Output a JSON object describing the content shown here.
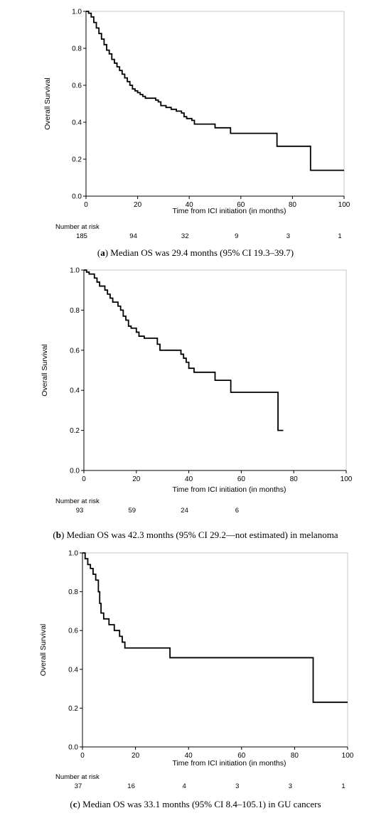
{
  "chart_data": [
    {
      "type": "line",
      "panel": "a",
      "xlabel": "Time from ICI initiation (in months)",
      "ylabel": "Overall Survival",
      "xlim": [
        0,
        100
      ],
      "ylim": [
        0,
        1
      ],
      "x_ticks": [
        "0",
        "20",
        "40",
        "60",
        "80",
        "100"
      ],
      "y_ticks": [
        "0.0",
        "0.2",
        "0.4",
        "0.6",
        "0.8",
        "1.0"
      ],
      "risk_title": "Number at risk",
      "risk_times": [
        0,
        20,
        40,
        60,
        80,
        100
      ],
      "risk_counts": [
        "185",
        "94",
        "32",
        "9",
        "3",
        "1"
      ],
      "caption_letter": "a",
      "caption_text": "Median OS was 29.4 months (95% CI 19.3–39.7)",
      "steps": [
        [
          0,
          1.0
        ],
        [
          1,
          0.99
        ],
        [
          2,
          0.97
        ],
        [
          3,
          0.94
        ],
        [
          4,
          0.91
        ],
        [
          5,
          0.88
        ],
        [
          6,
          0.85
        ],
        [
          7,
          0.82
        ],
        [
          8,
          0.79
        ],
        [
          9,
          0.77
        ],
        [
          10,
          0.74
        ],
        [
          11,
          0.72
        ],
        [
          12,
          0.7
        ],
        [
          13,
          0.68
        ],
        [
          14,
          0.66
        ],
        [
          15,
          0.64
        ],
        [
          16,
          0.62
        ],
        [
          17,
          0.6
        ],
        [
          18,
          0.58
        ],
        [
          19,
          0.57
        ],
        [
          20,
          0.56
        ],
        [
          21,
          0.55
        ],
        [
          22,
          0.54
        ],
        [
          23,
          0.53
        ],
        [
          27,
          0.52
        ],
        [
          28,
          0.51
        ],
        [
          29,
          0.49
        ],
        [
          31,
          0.48
        ],
        [
          33,
          0.47
        ],
        [
          35,
          0.46
        ],
        [
          37,
          0.45
        ],
        [
          38,
          0.43
        ],
        [
          39,
          0.42
        ],
        [
          41,
          0.41
        ],
        [
          42,
          0.39
        ],
        [
          50,
          0.37
        ],
        [
          56,
          0.34
        ],
        [
          74,
          0.27
        ],
        [
          87,
          0.14
        ],
        [
          100,
          0.14
        ]
      ]
    },
    {
      "type": "line",
      "panel": "b",
      "xlabel": "Time from ICI initiation (in months)",
      "ylabel": "Overall Survival",
      "xlim": [
        0,
        100
      ],
      "ylim": [
        0,
        1
      ],
      "x_ticks": [
        "0",
        "20",
        "40",
        "60",
        "80",
        "100"
      ],
      "y_ticks": [
        "0.0",
        "0.2",
        "0.4",
        "0.6",
        "0.8",
        "1.0"
      ],
      "risk_title": "Number at risk",
      "risk_times": [
        0,
        20,
        40,
        60
      ],
      "risk_counts": [
        "93",
        "59",
        "24",
        "6"
      ],
      "caption_letter": "b",
      "caption_text": "Median OS was 42.3 months (95% CI 29.2—not estimated) in melanoma",
      "steps": [
        [
          0,
          1.0
        ],
        [
          1,
          0.99
        ],
        [
          2,
          0.98
        ],
        [
          4,
          0.96
        ],
        [
          5,
          0.94
        ],
        [
          6,
          0.92
        ],
        [
          8,
          0.9
        ],
        [
          9,
          0.88
        ],
        [
          10,
          0.86
        ],
        [
          11,
          0.84
        ],
        [
          13,
          0.82
        ],
        [
          14,
          0.8
        ],
        [
          15,
          0.77
        ],
        [
          16,
          0.75
        ],
        [
          17,
          0.72
        ],
        [
          18,
          0.71
        ],
        [
          20,
          0.69
        ],
        [
          21,
          0.67
        ],
        [
          23,
          0.66
        ],
        [
          28,
          0.63
        ],
        [
          29,
          0.6
        ],
        [
          37,
          0.58
        ],
        [
          38,
          0.56
        ],
        [
          39,
          0.54
        ],
        [
          40,
          0.51
        ],
        [
          42,
          0.49
        ],
        [
          50,
          0.45
        ],
        [
          56,
          0.39
        ],
        [
          74,
          0.2
        ],
        [
          76,
          0.2
        ]
      ]
    },
    {
      "type": "line",
      "panel": "c",
      "xlabel": "Time from ICI initiation (in months)",
      "ylabel": "Overall Survival",
      "xlim": [
        0,
        100
      ],
      "ylim": [
        0,
        1
      ],
      "x_ticks": [
        "0",
        "20",
        "40",
        "60",
        "80",
        "100"
      ],
      "y_ticks": [
        "0.0",
        "0.2",
        "0.4",
        "0.6",
        "0.8",
        "1.0"
      ],
      "risk_title": "Number at risk",
      "risk_times": [
        0,
        20,
        40,
        60,
        80,
        100
      ],
      "risk_counts": [
        "37",
        "16",
        "4",
        "3",
        "3",
        "1"
      ],
      "caption_letter": "c",
      "caption_text": "Median OS was 33.1 months (95% CI 8.4–105.1) in GU cancers",
      "steps": [
        [
          0,
          1.0
        ],
        [
          1,
          0.97
        ],
        [
          2,
          0.94
        ],
        [
          3,
          0.92
        ],
        [
          4,
          0.89
        ],
        [
          5,
          0.86
        ],
        [
          6,
          0.8
        ],
        [
          6.5,
          0.74
        ],
        [
          7,
          0.69
        ],
        [
          8,
          0.66
        ],
        [
          10,
          0.63
        ],
        [
          12,
          0.6
        ],
        [
          14,
          0.57
        ],
        [
          15,
          0.54
        ],
        [
          16,
          0.51
        ],
        [
          33,
          0.46
        ],
        [
          87,
          0.23
        ],
        [
          100,
          0.23
        ]
      ]
    }
  ]
}
